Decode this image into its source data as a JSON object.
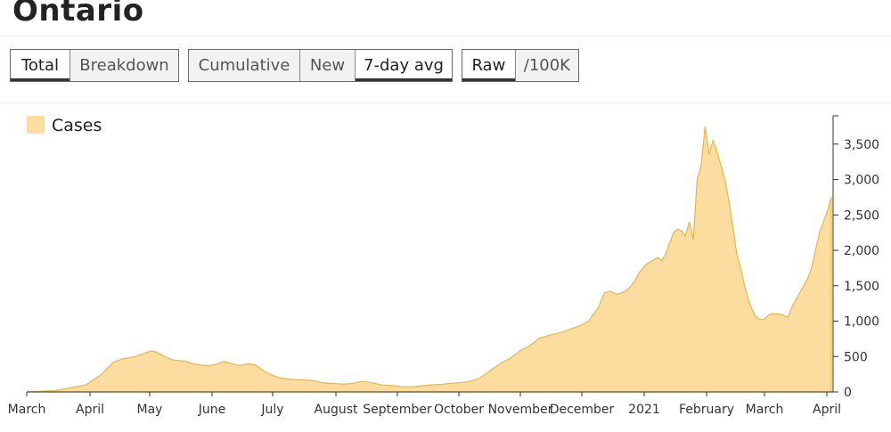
{
  "page": {
    "title": "Ontario"
  },
  "controls": {
    "group1": [
      {
        "label": "Total",
        "active": true
      },
      {
        "label": "Breakdown",
        "active": false
      }
    ],
    "group2": [
      {
        "label": "Cumulative",
        "active": false
      },
      {
        "label": "New",
        "active": false
      },
      {
        "label": "7-day avg",
        "active": true
      }
    ],
    "group3": [
      {
        "label": "Raw",
        "active": true
      },
      {
        "label": "/100K",
        "active": false
      }
    ]
  },
  "colors": {
    "area_fill": "#fcdd9f",
    "area_stroke": "#e7ba52",
    "axis": "#333333"
  },
  "chart_data": {
    "type": "area",
    "legend": {
      "label": "Cases",
      "position": "top-left"
    },
    "x_ticks": [
      "March",
      "April",
      "May",
      "June",
      "July",
      "August",
      "September",
      "October",
      "November",
      "December",
      "2021",
      "February",
      "March",
      "April"
    ],
    "y_ticks": [
      "0",
      "500",
      "1,000",
      "1,500",
      "2,000",
      "2,500",
      "3,000",
      "3,500"
    ],
    "ylim": [
      0,
      3900
    ],
    "y_axis_side": "right",
    "series": [
      {
        "name": "Cases",
        "x": [
          0,
          15,
          30,
          38,
          44,
          48,
          52,
          55,
          58,
          60,
          63,
          66,
          70,
          74,
          78,
          81,
          84,
          88,
          92,
          96,
          100,
          104,
          108,
          112,
          116,
          120,
          124,
          128,
          132,
          136,
          140,
          145,
          150,
          155,
          160,
          165,
          170,
          175,
          180,
          185,
          190,
          195,
          200,
          205,
          210,
          215,
          220,
          225,
          230,
          235,
          240,
          245,
          250,
          255,
          260,
          265,
          270,
          275,
          280,
          285,
          290,
          293,
          296,
          299,
          302,
          305,
          308,
          311,
          314,
          317,
          320,
          322,
          324,
          326,
          328,
          330,
          332,
          334,
          336,
          338,
          340,
          342,
          344,
          346,
          348,
          350,
          352,
          354,
          356,
          358,
          360,
          362,
          364,
          366,
          368,
          370,
          372,
          374,
          376,
          378,
          380,
          382,
          384,
          386,
          388,
          390,
          392,
          394,
          396,
          398,
          400
        ],
        "values": [
          0,
          20,
          100,
          250,
          420,
          460,
          480,
          500,
          530,
          550,
          580,
          560,
          500,
          450,
          440,
          430,
          400,
          380,
          370,
          390,
          430,
          400,
          370,
          400,
          380,
          300,
          240,
          200,
          185,
          175,
          170,
          160,
          130,
          120,
          110,
          120,
          150,
          130,
          100,
          90,
          75,
          70,
          85,
          100,
          105,
          120,
          130,
          150,
          200,
          300,
          400,
          470,
          580,
          650,
          760,
          800,
          830,
          880,
          930,
          1000,
          1200,
          1400,
          1420,
          1380,
          1400,
          1450,
          1550,
          1700,
          1800,
          1850,
          1900,
          1850,
          1950,
          2100,
          2250,
          2300,
          2280,
          2200,
          2400,
          2150,
          3000,
          3200,
          3750,
          3350,
          3550,
          3400,
          3200,
          3000,
          2700,
          2350,
          1950,
          1750,
          1500,
          1300,
          1150,
          1050,
          1020,
          1030,
          1080,
          1110,
          1100,
          1100,
          1080,
          1050,
          1200,
          1300,
          1400,
          1500,
          1600,
          1750,
          2000
        ]
      }
    ],
    "x_extra": [
      402,
      404,
      406,
      408
    ],
    "values_extra": [
      2250,
      2400,
      2550,
      2750
    ]
  }
}
